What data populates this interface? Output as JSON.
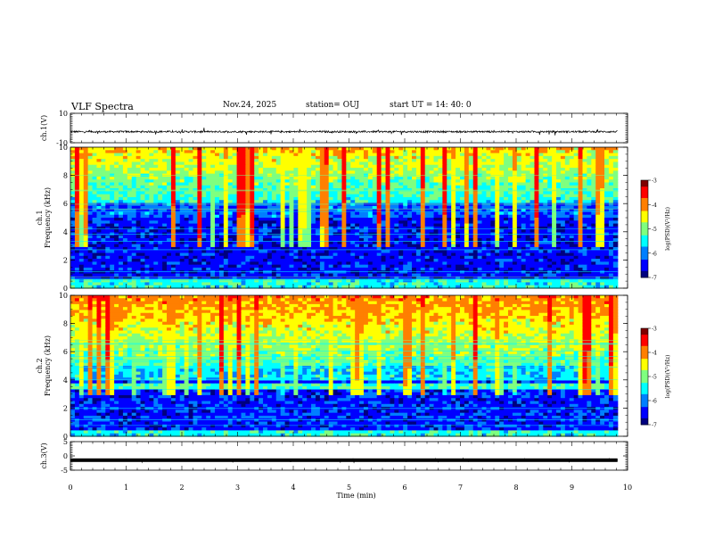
{
  "header": {
    "title": "VLF Spectra",
    "date": "Nov.24, 2025",
    "station": "station= OUJ",
    "start": "start  UT =   14: 40: 0"
  },
  "colors": {
    "jet": [
      "#00007f",
      "#0000ff",
      "#007fff",
      "#00ffff",
      "#7fff7f",
      "#ffff00",
      "#ff7f00",
      "#ff0000",
      "#7f0000"
    ]
  },
  "chart_data": [
    {
      "id": "ch1-waveform",
      "type": "line",
      "ylabel": "ch.1(V)",
      "ylim": [
        -10,
        10
      ],
      "yticks": [
        "10",
        "-10"
      ],
      "xlim": [
        0,
        10
      ],
      "baseline": -2.5,
      "noise_amplitude": 1.2
    },
    {
      "id": "ch1-spectrogram",
      "type": "heatmap",
      "ylabel_top": "ch.1",
      "ylabel": "Frequency (kHz)",
      "ylim": [
        0,
        10
      ],
      "yticks": [
        "0",
        "2",
        "4",
        "6",
        "8",
        "10"
      ],
      "xlim": [
        0,
        10
      ],
      "data_x_end": 9.82,
      "colorbar": {
        "label": "log(PSD)(V²/Hz)",
        "range": [
          -7,
          -3
        ],
        "ticks": [
          "-3",
          "-4",
          "-5",
          "-6",
          "-7"
        ]
      }
    },
    {
      "id": "ch2-spectrogram",
      "type": "heatmap",
      "ylabel_top": "ch.2",
      "ylabel": "Frequency (kHz)",
      "ylim": [
        0,
        10
      ],
      "yticks": [
        "0",
        "2",
        "4",
        "6",
        "8",
        "10"
      ],
      "xlim": [
        0,
        10
      ],
      "data_x_end": 9.82,
      "band_khz": 3.6,
      "colorbar": {
        "label": "log(PSD)(V²/Hz)",
        "range": [
          -7,
          -3
        ],
        "ticks": [
          "-3",
          "-4",
          "-5",
          "-6",
          "-7"
        ]
      }
    },
    {
      "id": "ch3-waveform",
      "type": "line",
      "ylabel": "ch.3(V)",
      "ylim": [
        -5,
        5
      ],
      "yticks": [
        "5",
        "0",
        "-5"
      ],
      "xlim": [
        0,
        10
      ],
      "baseline": -1.5,
      "noise_amplitude": 0.3
    }
  ],
  "xaxis": {
    "label": "Time  (min)",
    "ticks": [
      "0",
      "1",
      "2",
      "3",
      "4",
      "5",
      "6",
      "7",
      "8",
      "9",
      "10"
    ]
  }
}
